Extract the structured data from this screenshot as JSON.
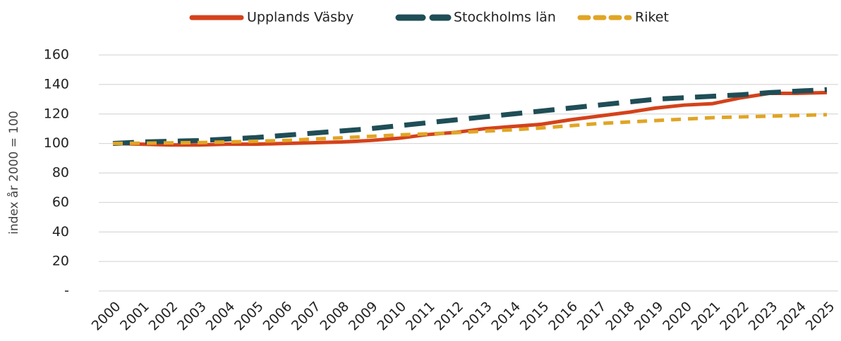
{
  "chart_data": {
    "type": "line",
    "y_label": "index år 2000 = 100",
    "categories": [
      "2000",
      "2001",
      "2002",
      "2003",
      "2004",
      "2005",
      "2006",
      "2007",
      "2008",
      "2009",
      "2010",
      "2011",
      "2012",
      "2013",
      "2014",
      "2015",
      "2016",
      "2017",
      "2018",
      "2019",
      "2020",
      "2021",
      "2022",
      "2023",
      "2024",
      "2025"
    ],
    "series": [
      {
        "name": "Upplands Väsby",
        "color": "#d4421b",
        "dash": "solid",
        "values": [
          100,
          99.5,
          99,
          99,
          99.5,
          99.5,
          100,
          100.5,
          101,
          102,
          103.5,
          106,
          107.5,
          110,
          111.5,
          113,
          116,
          118.5,
          121,
          124,
          126,
          127,
          131,
          134,
          134,
          134.5
        ]
      },
      {
        "name": "Stockholms län",
        "color": "#1f4e57",
        "dash": "long",
        "values": [
          100,
          101,
          101.5,
          102,
          103,
          104,
          105.5,
          107,
          108.5,
          110,
          112,
          114,
          116,
          118,
          120,
          122,
          124,
          126,
          128,
          130,
          131,
          132,
          133,
          134.5,
          135.5,
          136.5
        ]
      },
      {
        "name": "Riket",
        "color": "#e0a526",
        "dash": "short",
        "values": [
          100,
          100.2,
          100.4,
          100.6,
          101,
          101.5,
          102,
          103,
          103.8,
          104.8,
          105.8,
          106.5,
          107.3,
          108.3,
          109.3,
          110.5,
          112,
          113.5,
          114.5,
          115.5,
          116.5,
          117.5,
          118,
          118.5,
          119,
          119.5
        ]
      }
    ],
    "ylim": [
      0,
      160
    ],
    "yticks": [
      {
        "value": 0,
        "label": "-"
      },
      20,
      40,
      60,
      80,
      100,
      120,
      140,
      160
    ],
    "grid": true,
    "legend": "top"
  }
}
